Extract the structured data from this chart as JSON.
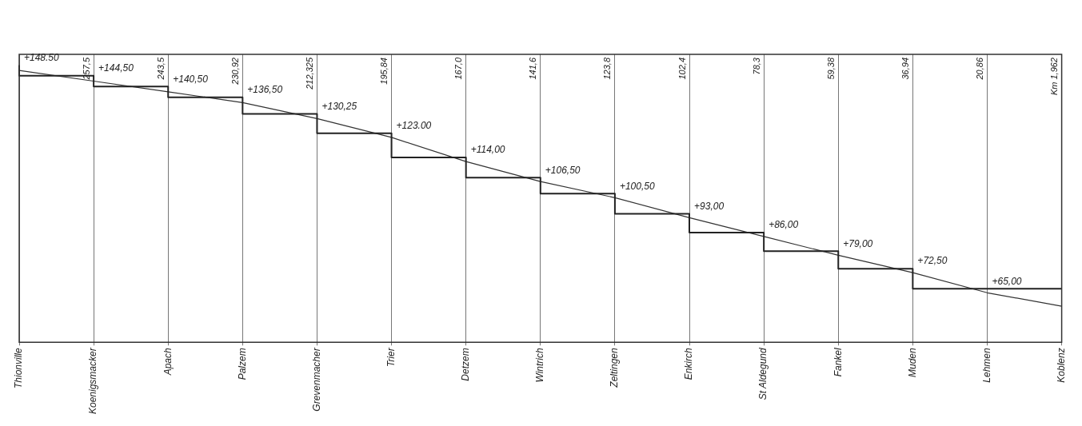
{
  "chart_data": {
    "type": "step",
    "categories": [
      "Thionville",
      "Koenigsmacker",
      "Apach",
      "Palzem",
      "Grevenmacher",
      "Trier",
      "Detzem",
      "Wintrich",
      "Zeltingen",
      "Enkirch",
      "St Aldegund",
      "Fankel",
      "Muden",
      "Lehmen",
      "Koblenz"
    ],
    "ylim": [
      45,
      152.5
    ],
    "tick_labels": "x",
    "grid": "x",
    "legend": false,
    "annotations": [
      "257,5",
      "243,5",
      "230,92",
      "212,325",
      "195,84",
      "167,0",
      "141,6",
      "123,8",
      "102,4",
      "78,3",
      "59,38",
      "36,94",
      "20,86",
      "Km 1,962"
    ],
    "series": [
      {
        "type": "step",
        "color": "#222222",
        "values": [
          148.5,
          144.5,
          140.5,
          136.5,
          130.25,
          123.0,
          114.0,
          106.5,
          100.5,
          93.0,
          86.0,
          79.0,
          72.5,
          65.0,
          65.0
        ],
        "value_labels": [
          "+148.50",
          "+144,50",
          "+140,50",
          "+136,50",
          "+130,25",
          "+123.00",
          "+114,00",
          "+106,50",
          "+100,50",
          "+93,00",
          "+86,00",
          "+79,00",
          "+72,50",
          "+65,00",
          null
        ]
      },
      {
        "type": "line",
        "color": "#333333",
        "values": [
          146.5,
          142.5,
          138.5,
          134.5,
          128.5,
          121.5,
          112.5,
          105,
          99,
          91.5,
          84.5,
          77.5,
          71,
          63.5,
          58.5
        ]
      }
    ]
  }
}
